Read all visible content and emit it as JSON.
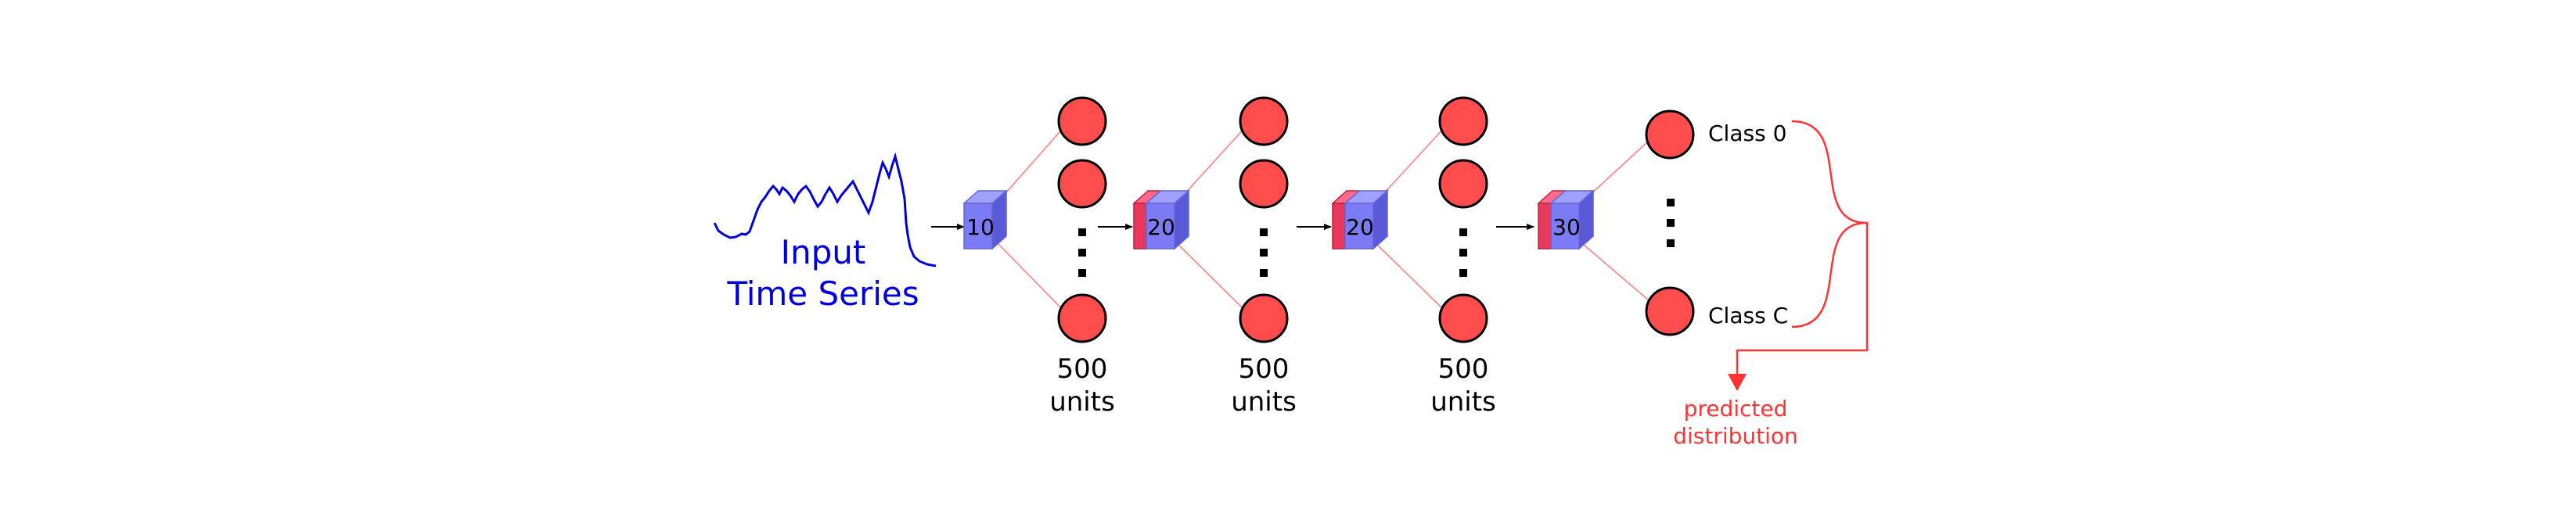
{
  "input": {
    "title_line1": "Input",
    "title_line2": "Time Series",
    "color": "#0000dd"
  },
  "blocks": [
    {
      "label": "10",
      "has_red_slab": false
    },
    {
      "label": "20",
      "has_red_slab": true
    },
    {
      "label": "20",
      "has_red_slab": true
    },
    {
      "label": "30",
      "has_red_slab": true
    }
  ],
  "layers": [
    {
      "units_line1": "500",
      "units_line2": "units"
    },
    {
      "units_line1": "500",
      "units_line2": "units"
    },
    {
      "units_line1": "500",
      "units_line2": "units"
    }
  ],
  "output": {
    "class_top": "Class 0",
    "class_bottom": "Class C",
    "predicted_line1": "predicted",
    "predicted_line2": "distribution"
  },
  "colors": {
    "node_fill": "#ff4d4d",
    "cube_fill": "#7b7bf5",
    "cube_red": "#e8385c",
    "connector": "#ff8080",
    "annotation": "#ff3333"
  }
}
